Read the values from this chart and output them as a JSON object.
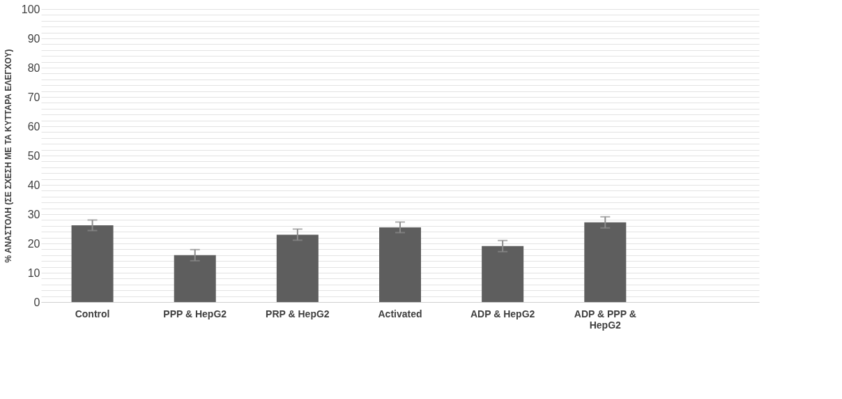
{
  "chart_data": {
    "type": "bar",
    "ylabel": "% ΑΝΑΣΤΟΛΗ  (ΣΕ ΣΧΕΣΗ ΜΕ ΤΑ ΚΥΤΤΑΡΑ ΕΛΕΓΧΟΥ)",
    "categories": [
      "Control",
      "PPP & HepG2",
      "PRP & HepG2",
      "Activated",
      "ADP & HepG2",
      "ADP & PPP & HepG2",
      null
    ],
    "values": [
      26.2,
      16.0,
      23.0,
      25.5,
      19.1,
      27.2,
      null
    ],
    "errors": [
      1.8,
      1.9,
      1.9,
      1.8,
      1.9,
      1.9,
      null
    ],
    "color": "#5e5e5e",
    "ylim": [
      0,
      100
    ],
    "yticks": [
      0,
      {
        "value": 2,
        "label": null
      },
      {
        "value": 4,
        "label": null
      },
      {
        "value": 6,
        "label": null
      },
      {
        "value": 8,
        "label": null
      },
      10,
      {
        "value": 12,
        "label": null
      },
      {
        "value": 14,
        "label": null
      },
      {
        "value": 16,
        "label": null
      },
      {
        "value": 18,
        "label": null
      },
      20,
      {
        "value": 22,
        "label": null
      },
      {
        "value": 24,
        "label": null
      },
      {
        "value": 26,
        "label": null
      },
      {
        "value": 28,
        "label": null
      },
      30,
      {
        "value": 32,
        "label": null
      },
      {
        "value": 34,
        "label": null
      },
      {
        "value": 36,
        "label": null
      },
      {
        "value": 38,
        "label": null
      },
      40,
      {
        "value": 42,
        "label": null
      },
      {
        "value": 44,
        "label": null
      },
      {
        "value": 46,
        "label": null
      },
      {
        "value": 48,
        "label": null
      },
      50,
      {
        "value": 52,
        "label": null
      },
      {
        "value": 54,
        "label": null
      },
      {
        "value": 56,
        "label": null
      },
      {
        "value": 58,
        "label": null
      },
      60,
      {
        "value": 62,
        "label": null
      },
      {
        "value": 64,
        "label": null
      },
      {
        "value": 66,
        "label": null
      },
      {
        "value": 68,
        "label": null
      },
      70,
      {
        "value": 72,
        "label": null
      },
      {
        "value": 74,
        "label": null
      },
      {
        "value": 76,
        "label": null
      },
      {
        "value": 78,
        "label": null
      },
      80,
      {
        "value": 82,
        "label": null
      },
      {
        "value": 84,
        "label": null
      },
      {
        "value": 86,
        "label": null
      },
      {
        "value": 88,
        "label": null
      },
      90,
      {
        "value": 92,
        "label": null
      },
      {
        "value": 94,
        "label": null
      },
      {
        "value": 96,
        "label": null
      },
      {
        "value": 98,
        "label": null
      },
      100
    ],
    "grid": "y"
  }
}
